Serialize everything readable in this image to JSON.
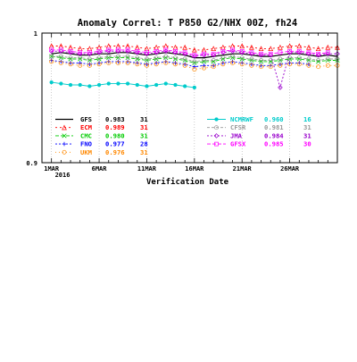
{
  "chart_data": {
    "type": "line",
    "title": "Anomaly Correl: T P850 G2/NHX 00Z, fh24",
    "xlabel": "Verification Date",
    "ylabel": "",
    "ylim": [
      0.9,
      1.0
    ],
    "y_ticks": [
      "1",
      "0.9"
    ],
    "x_tick_labels": [
      "1MAR",
      "6MAR",
      "11MAR",
      "16MAR",
      "21MAR",
      "26MAR"
    ],
    "x_tick_days": [
      1,
      6,
      11,
      16,
      21,
      26
    ],
    "x_year_label": "2016",
    "xlim": [
      0,
      31
    ],
    "grid": "dotted vertical lines at major date ticks",
    "legend_placement": "bottom, inside plot (two columns)",
    "x": [
      1,
      2,
      3,
      4,
      5,
      6,
      7,
      8,
      9,
      10,
      11,
      12,
      13,
      14,
      15,
      16,
      17,
      18,
      19,
      20,
      21,
      22,
      23,
      24,
      25,
      26,
      27,
      28,
      29,
      30,
      31
    ],
    "series": [
      {
        "name": "GFS",
        "score": "0.983",
        "count": "31",
        "color": "#000000",
        "dash": "",
        "marker": "none",
        "values": [
          0.984,
          0.985,
          0.984,
          0.983,
          0.983,
          0.984,
          0.984,
          0.985,
          0.985,
          0.984,
          0.983,
          0.984,
          0.985,
          0.984,
          0.983,
          0.981,
          0.981,
          0.982,
          0.983,
          0.984,
          0.984,
          0.983,
          0.982,
          0.982,
          0.983,
          0.984,
          0.984,
          0.983,
          0.982,
          0.983,
          0.982
        ]
      },
      {
        "name": "ECM",
        "score": "0.989",
        "count": "31",
        "color": "#ff0000",
        "dash": "2,3",
        "marker": "triangle",
        "values": [
          0.99,
          0.99,
          0.989,
          0.988,
          0.988,
          0.989,
          0.99,
          0.99,
          0.99,
          0.989,
          0.988,
          0.989,
          0.99,
          0.989,
          0.989,
          0.987,
          0.987,
          0.988,
          0.989,
          0.99,
          0.99,
          0.989,
          0.988,
          0.988,
          0.989,
          0.99,
          0.99,
          0.989,
          0.988,
          0.989,
          0.989
        ]
      },
      {
        "name": "CMC",
        "score": "0.980",
        "count": "31",
        "color": "#00cc00",
        "dash": "4,2",
        "marker": "x",
        "values": [
          0.982,
          0.981,
          0.98,
          0.98,
          0.979,
          0.98,
          0.981,
          0.981,
          0.981,
          0.98,
          0.979,
          0.98,
          0.981,
          0.98,
          0.979,
          0.977,
          0.978,
          0.978,
          0.98,
          0.981,
          0.98,
          0.979,
          0.978,
          0.978,
          0.979,
          0.98,
          0.98,
          0.979,
          0.978,
          0.979,
          0.979
        ]
      },
      {
        "name": "FNO",
        "score": "0.977",
        "count": "28",
        "color": "#0000ff",
        "dash": "2,2",
        "marker": "plus",
        "values": [
          0.979,
          0.978,
          0.977,
          0.977,
          0.976,
          0.977,
          0.978,
          0.978,
          0.978,
          0.977,
          0.976,
          0.977,
          0.978,
          0.977,
          0.976,
          0.974,
          0.975,
          0.975,
          0.977,
          0.978,
          0.977,
          0.976,
          0.975,
          0.975,
          0.976,
          0.977,
          0.977,
          0.976,
          null,
          null,
          null
        ]
      },
      {
        "name": "UKM",
        "score": "0.976",
        "count": "31",
        "color": "#ff8800",
        "dash": "1,3",
        "marker": "circle",
        "values": [
          0.978,
          0.977,
          0.976,
          0.975,
          0.975,
          0.976,
          0.977,
          0.977,
          0.977,
          0.976,
          0.975,
          0.976,
          0.977,
          0.976,
          0.975,
          0.972,
          0.973,
          0.974,
          0.976,
          0.977,
          0.976,
          0.975,
          0.974,
          0.974,
          0.975,
          0.976,
          0.976,
          0.975,
          0.974,
          0.975,
          0.975
        ]
      },
      {
        "name": "NCMRWF",
        "score": "0.960",
        "count": "16",
        "color": "#00cccc",
        "dash": "",
        "marker": "dot",
        "values": [
          0.962,
          0.961,
          0.96,
          0.96,
          0.959,
          0.96,
          0.961,
          0.961,
          0.961,
          0.96,
          0.959,
          0.96,
          0.961,
          0.96,
          0.959,
          0.958,
          null,
          null,
          null,
          null,
          null,
          null,
          null,
          null,
          null,
          null,
          null,
          null,
          null,
          null,
          null
        ]
      },
      {
        "name": "CFSR",
        "score": "0.981",
        "count": "31",
        "color": "#999999",
        "dash": "3,2",
        "marker": "circle",
        "values": [
          0.982,
          0.982,
          0.981,
          0.981,
          0.98,
          0.981,
          0.982,
          0.982,
          0.982,
          0.981,
          0.98,
          0.981,
          0.982,
          0.981,
          0.98,
          0.978,
          0.979,
          0.979,
          0.981,
          0.982,
          0.981,
          0.98,
          0.979,
          0.979,
          0.98,
          0.981,
          0.981,
          0.98,
          0.979,
          0.98,
          0.98
        ]
      },
      {
        "name": "JMA",
        "score": "0.984",
        "count": "31",
        "color": "#9900cc",
        "dash": "2,2",
        "marker": "diamond",
        "values": [
          0.986,
          0.986,
          0.985,
          0.984,
          0.984,
          0.985,
          0.986,
          0.986,
          0.986,
          0.985,
          0.984,
          0.985,
          0.986,
          0.985,
          0.984,
          0.982,
          0.983,
          0.983,
          0.985,
          0.986,
          0.985,
          0.984,
          0.983,
          0.983,
          0.958,
          0.985,
          0.985,
          0.984,
          0.983,
          0.984,
          0.984
        ]
      },
      {
        "name": "GFSX",
        "score": "0.985",
        "count": "30",
        "color": "#ff00ff",
        "dash": "4,2",
        "marker": "square",
        "values": [
          0.987,
          0.987,
          0.986,
          0.985,
          0.985,
          0.986,
          0.987,
          0.987,
          0.987,
          0.986,
          0.985,
          0.986,
          0.987,
          0.986,
          0.985,
          0.983,
          0.984,
          0.984,
          0.986,
          0.987,
          0.986,
          0.985,
          0.984,
          0.984,
          0.985,
          0.986,
          0.986,
          0.985,
          0.984,
          0.985,
          null
        ]
      }
    ]
  }
}
